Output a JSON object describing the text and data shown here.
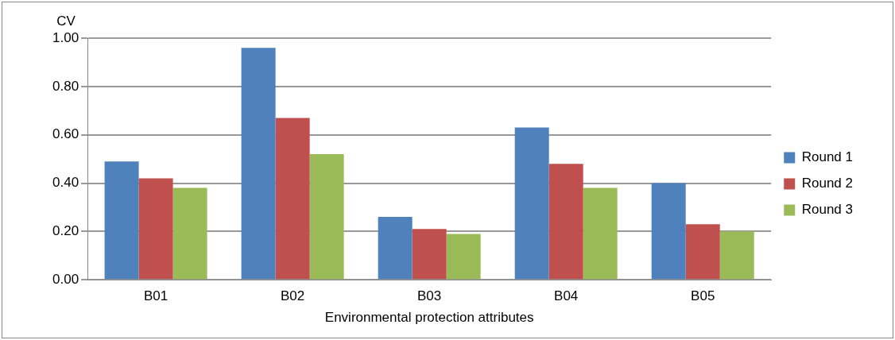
{
  "chart_data": {
    "type": "bar",
    "ylabel": "CV",
    "xlabel": "Environmental protection attributes",
    "categories": [
      "B01",
      "B02",
      "B03",
      "B04",
      "B05"
    ],
    "series": [
      {
        "name": "Round 1",
        "color": "#4f81bd",
        "values": [
          0.49,
          0.96,
          0.26,
          0.63,
          0.4
        ]
      },
      {
        "name": "Round 2",
        "color": "#c0504d",
        "values": [
          0.42,
          0.67,
          0.21,
          0.48,
          0.23
        ]
      },
      {
        "name": "Round 3",
        "color": "#9bbb59",
        "values": [
          0.38,
          0.52,
          0.19,
          0.38,
          0.2
        ]
      }
    ],
    "ylim": [
      0,
      1
    ],
    "yticks": [
      {
        "value": 0,
        "label": "0.00"
      },
      {
        "value": 0.2,
        "label": "0.20"
      },
      {
        "value": 0.4,
        "label": "0.40"
      },
      {
        "value": 0.6,
        "label": "0.60"
      },
      {
        "value": 0.8,
        "label": "0.80"
      },
      {
        "value": 1,
        "label": "1.00"
      }
    ],
    "grid": "y",
    "legend": "right"
  }
}
